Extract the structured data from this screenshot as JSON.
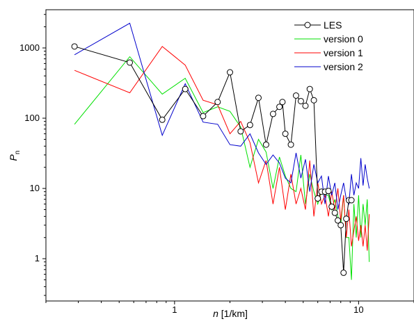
{
  "chart_data": {
    "type": "line",
    "xscale": "log",
    "yscale": "log",
    "xlim": [
      0.2,
      20
    ],
    "ylim": [
      0.25,
      3500
    ],
    "xlabel": "n [1/km]",
    "xlabel_italic": "n",
    "xlabel_rest": " [1/km]",
    "ylabel": "P",
    "ylabel_sub": "n",
    "xticks": [
      {
        "value": 1,
        "label": "1"
      },
      {
        "value": 10,
        "label": "10"
      }
    ],
    "yticks": [
      {
        "value": 1,
        "label": "1"
      },
      {
        "value": 10,
        "label": "10"
      },
      {
        "value": 100,
        "label": "100"
      },
      {
        "value": 1000,
        "label": "1000"
      }
    ],
    "grid": false,
    "legend_position": "top-right",
    "series": [
      {
        "name": "LES",
        "color": "#000000",
        "marker": "circle",
        "x": [
          0.286,
          0.571,
          0.857,
          1.143,
          1.429,
          1.714,
          2.0,
          2.286,
          2.571,
          2.857,
          3.143,
          3.429,
          3.714,
          3.857,
          4.0,
          4.286,
          4.571,
          4.857,
          5.143,
          5.429,
          5.714,
          6.0,
          6.286,
          6.571,
          6.857,
          7.143,
          7.429,
          7.714,
          8.0,
          8.286,
          8.571,
          8.857,
          9.143
        ],
        "y": [
          1050,
          620,
          95,
          260,
          107,
          170,
          450,
          65,
          80,
          195,
          42,
          115,
          145,
          170,
          60,
          42,
          210,
          175,
          150,
          260,
          180,
          7.2,
          9.0,
          9.0,
          9.2,
          5.5,
          4.5,
          3.5,
          3.0,
          0.63,
          3.7,
          6.8,
          6.8
        ]
      },
      {
        "name": "version 0",
        "color": "#00e000",
        "marker": "none",
        "x": [
          0.286,
          0.571,
          0.857,
          1.143,
          1.429,
          1.714,
          2.0,
          2.286,
          2.571,
          2.857,
          3.143,
          3.429,
          3.714,
          4.0,
          4.286,
          4.571,
          4.857,
          5.143,
          5.429,
          5.714,
          6.0,
          6.286,
          6.571,
          6.857,
          7.143,
          7.429,
          7.714,
          8.0,
          8.286,
          8.571,
          8.857,
          9.143,
          9.429,
          9.714,
          10.0,
          10.286,
          10.571,
          10.857,
          11.143,
          11.429
        ],
        "y": [
          82,
          750,
          220,
          370,
          120,
          145,
          125,
          75,
          20,
          50,
          33,
          10,
          28,
          15,
          10,
          9,
          30,
          6,
          16,
          9,
          6,
          9,
          8,
          8,
          5,
          7,
          4,
          3,
          8,
          2,
          2,
          0.5,
          6,
          2,
          8,
          2,
          6,
          3,
          7,
          0.9
        ]
      },
      {
        "name": "version 1",
        "color": "#ff0000",
        "marker": "none",
        "x": [
          0.286,
          0.571,
          0.857,
          1.143,
          1.429,
          1.714,
          2.0,
          2.286,
          2.571,
          2.857,
          3.143,
          3.429,
          3.714,
          4.0,
          4.286,
          4.571,
          4.857,
          5.143,
          5.429,
          5.714,
          6.0,
          6.286,
          6.571,
          6.857,
          7.143,
          7.429,
          7.714,
          8.0,
          8.286,
          8.571,
          8.857,
          9.143,
          9.429,
          9.714,
          10.0,
          10.286,
          10.571,
          10.857,
          11.143,
          11.429
        ],
        "y": [
          480,
          230,
          1050,
          570,
          180,
          155,
          60,
          90,
          45,
          12,
          25,
          6,
          20,
          5,
          16,
          6,
          10,
          5,
          25,
          4,
          12,
          6,
          8,
          4,
          9,
          5,
          10,
          3.5,
          8,
          2,
          5,
          1.5,
          2.5,
          4,
          1.8,
          3,
          1.5,
          3,
          1.3,
          4.3
        ]
      },
      {
        "name": "version 2",
        "color": "#0000cc",
        "marker": "none",
        "x": [
          0.286,
          0.571,
          0.857,
          1.143,
          1.429,
          1.714,
          2.0,
          2.286,
          2.571,
          2.857,
          3.143,
          3.429,
          3.714,
          4.0,
          4.286,
          4.571,
          4.857,
          5.143,
          5.429,
          5.714,
          6.0,
          6.286,
          6.571,
          6.857,
          7.143,
          7.429,
          7.714,
          8.0,
          8.286,
          8.571,
          8.857,
          9.143,
          9.429,
          9.714,
          10.0,
          10.286,
          10.571,
          10.857,
          11.143,
          11.429
        ],
        "y": [
          800,
          2250,
          57,
          310,
          88,
          82,
          42,
          40,
          60,
          32,
          22,
          30,
          23,
          14,
          12,
          32,
          14,
          26,
          9,
          22,
          12,
          15,
          6,
          15,
          8,
          12,
          5,
          8,
          12,
          7,
          6,
          16,
          8,
          12,
          10,
          27,
          11,
          22,
          14,
          10
        ]
      }
    ]
  }
}
